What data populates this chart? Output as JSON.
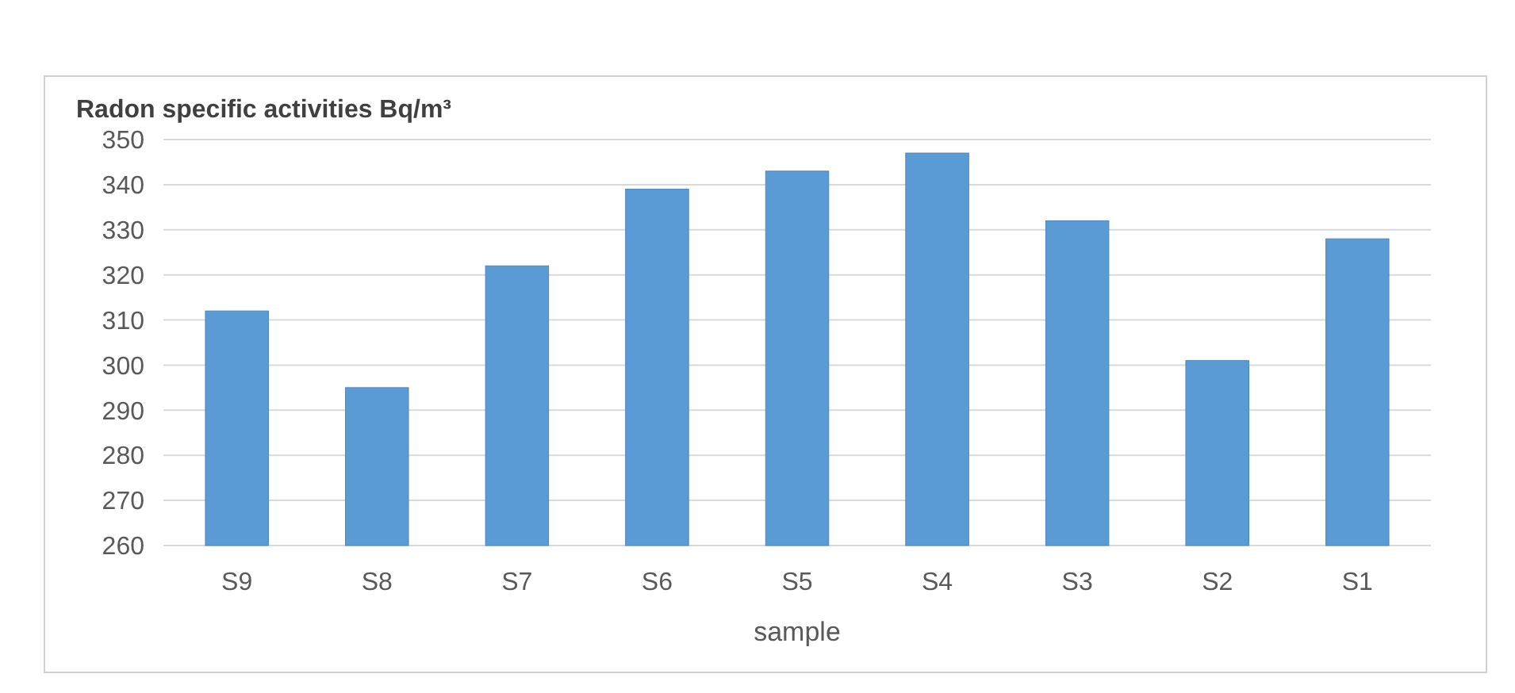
{
  "chart_data": {
    "type": "bar",
    "title": "Radon specific activities Bq/m³",
    "xlabel": "sample",
    "categories": [
      "S9",
      "S8",
      "S7",
      "S6",
      "S5",
      "S4",
      "S3",
      "S2",
      "S1"
    ],
    "values": [
      312,
      295,
      322,
      339,
      343,
      347,
      332,
      301,
      328
    ],
    "color": "#5b9bd5",
    "ylim": [
      260,
      350
    ],
    "yticks": [
      260,
      270,
      280,
      290,
      300,
      310,
      320,
      330,
      340,
      350
    ],
    "grid": "y"
  }
}
